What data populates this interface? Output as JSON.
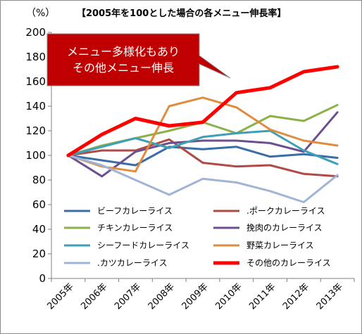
{
  "chart_data": {
    "type": "line",
    "title": "【2005年を100とした場合の各メニュー伸長率】",
    "ylabel": "（%）",
    "xlabel": "",
    "ylim": [
      0,
      200
    ],
    "yticks": [
      0,
      20,
      40,
      60,
      80,
      100,
      120,
      140,
      160,
      180,
      200
    ],
    "grid": false,
    "legend_position": "bottom-inside",
    "categories": [
      "2005年",
      "2006年",
      "2007年",
      "2008年",
      "2009年",
      "2010年",
      "2011年",
      "2012年",
      "2013年"
    ],
    "series": [
      {
        "name": "ビーフカレーライス",
        "color": "#3a6ea8",
        "values": [
          100,
          96,
          92,
          107,
          105,
          107,
          99,
          101,
          98
        ]
      },
      {
        "name": ".ポークカレーライス",
        "color": "#b04a46",
        "values": [
          100,
          104,
          104,
          113,
          94,
          91,
          92,
          85,
          83
        ]
      },
      {
        "name": "チキンカレーライス",
        "color": "#8db04a",
        "values": [
          100,
          108,
          114,
          120,
          127,
          118,
          132,
          128,
          141
        ]
      },
      {
        "name": "挽肉のカレーライス",
        "color": "#6d4f8f",
        "values": [
          100,
          83,
          103,
          110,
          112,
          112,
          110,
          103,
          135
        ]
      },
      {
        "name": "シーフードカレーライス",
        "color": "#3ea0b5",
        "values": [
          100,
          107,
          114,
          106,
          115,
          118,
          120,
          104,
          93
        ]
      },
      {
        "name": "野菜カレーライス",
        "color": "#e08c3e",
        "values": [
          100,
          91,
          87,
          140,
          147,
          139,
          121,
          112,
          108
        ]
      },
      {
        "name": ".カツカレーライス",
        "color": "#9fb4d6",
        "values": [
          100,
          92,
          80,
          68,
          81,
          78,
          71,
          62,
          84
        ]
      },
      {
        "name": "その他のカレーライス",
        "color": "#ff0000",
        "values": [
          100,
          117,
          130,
          124,
          127,
          151,
          155,
          168,
          172
        ]
      }
    ],
    "annotation": {
      "lines": [
        "メニュー多様化もあり",
        "その他メニュー伸長"
      ],
      "fill": "#c00000",
      "text_color": "#ffffff"
    }
  }
}
